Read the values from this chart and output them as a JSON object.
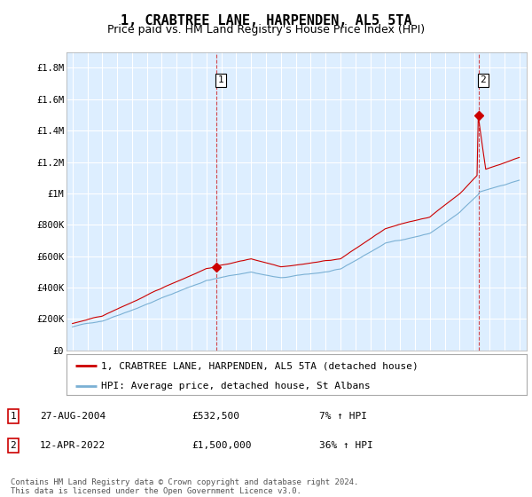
{
  "title": "1, CRABTREE LANE, HARPENDEN, AL5 5TA",
  "subtitle": "Price paid vs. HM Land Registry's House Price Index (HPI)",
  "ylabel_ticks": [
    "£0",
    "£200K",
    "£400K",
    "£600K",
    "£800K",
    "£1M",
    "£1.2M",
    "£1.4M",
    "£1.6M",
    "£1.8M"
  ],
  "ytick_values": [
    0,
    200000,
    400000,
    600000,
    800000,
    1000000,
    1200000,
    1400000,
    1600000,
    1800000
  ],
  "ylim": [
    0,
    1900000
  ],
  "xlim_start": 1994.6,
  "xlim_end": 2025.5,
  "sale1_x": 2004.65,
  "sale1_y": 532500,
  "sale2_x": 2022.28,
  "sale2_y": 1500000,
  "marker_color": "#cc0000",
  "line_color_property": "#cc0000",
  "line_color_hpi": "#7ab0d4",
  "dashed_line_color": "#cc0000",
  "grid_color": "#cccccc",
  "chart_bg_color": "#ddeeff",
  "background_color": "#ffffff",
  "legend_label_property": "1, CRABTREE LANE, HARPENDEN, AL5 5TA (detached house)",
  "legend_label_hpi": "HPI: Average price, detached house, St Albans",
  "annotation1_num": "1",
  "annotation1_date": "27-AUG-2004",
  "annotation1_price": "£532,500",
  "annotation1_hpi": "7% ↑ HPI",
  "annotation2_num": "2",
  "annotation2_date": "12-APR-2022",
  "annotation2_price": "£1,500,000",
  "annotation2_hpi": "36% ↑ HPI",
  "footer": "Contains HM Land Registry data © Crown copyright and database right 2024.\nThis data is licensed under the Open Government Licence v3.0.",
  "title_fontsize": 11,
  "subtitle_fontsize": 9,
  "tick_fontsize": 7.5,
  "legend_fontsize": 8,
  "annotation_fontsize": 8,
  "footer_fontsize": 6.5
}
